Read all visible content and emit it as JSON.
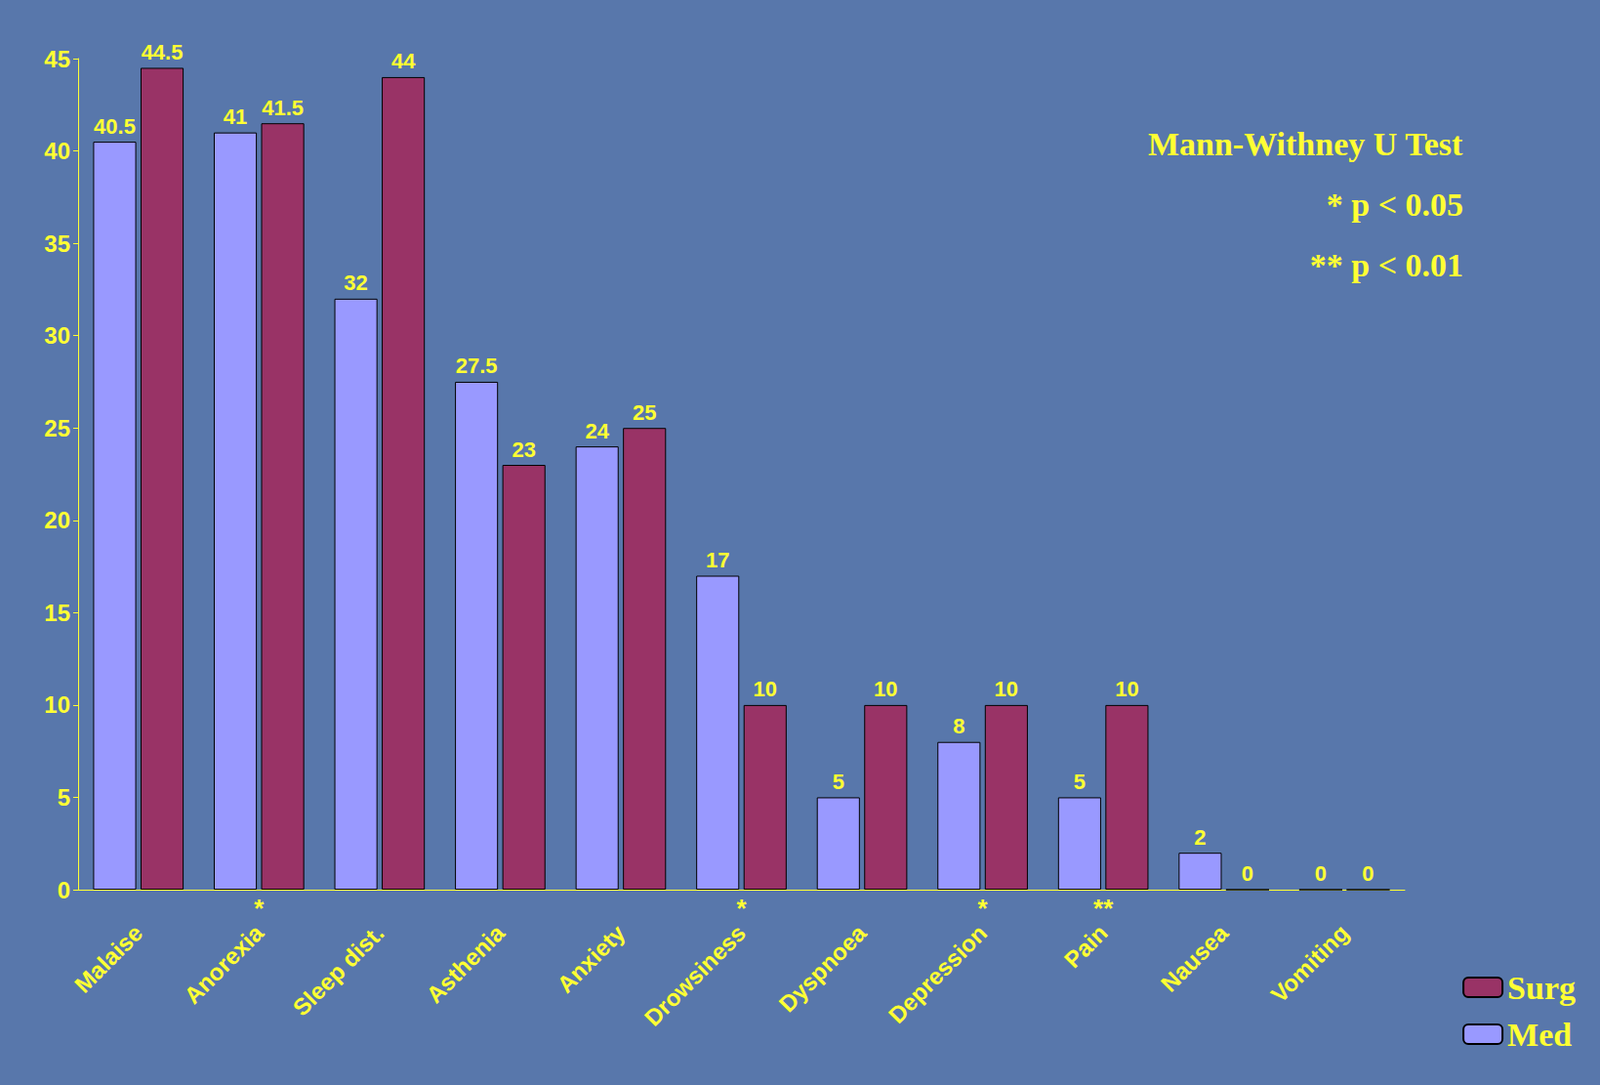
{
  "chart_data": {
    "type": "bar",
    "categories": [
      "Malaise",
      "Anorexia",
      "Sleep dist.",
      "Asthenia",
      "Anxiety",
      "Drowsiness",
      "Dyspnoea",
      "Depression",
      "Pain",
      "Nausea",
      "Vomiting"
    ],
    "series": [
      {
        "name": "Med",
        "color": "#9999ff",
        "values": [
          40.5,
          41,
          32,
          27.5,
          24,
          17,
          5,
          8,
          5,
          2,
          0
        ]
      },
      {
        "name": "Surg",
        "color": "#993366",
        "values": [
          44.5,
          41.5,
          44,
          23,
          25,
          10,
          10,
          10,
          10,
          0,
          0
        ]
      }
    ],
    "significance": [
      null,
      "*",
      null,
      null,
      null,
      "*",
      null,
      "*",
      "**",
      null,
      null
    ],
    "annotations": [
      "Mann-Withney U Test",
      "* p < 0.05",
      "** p < 0.01"
    ],
    "ylim": [
      0,
      45
    ],
    "yticks": [
      0,
      5,
      10,
      15,
      20,
      25,
      30,
      35,
      40,
      45
    ],
    "grid": false,
    "data_labels": true,
    "legend": "lower right"
  }
}
